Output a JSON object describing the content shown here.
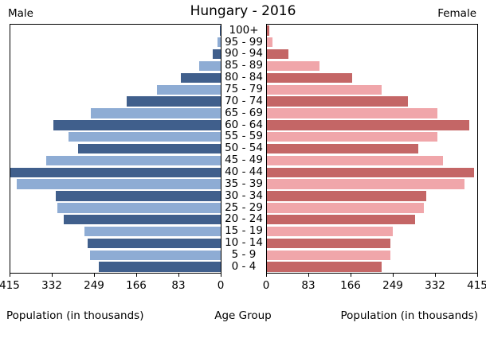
{
  "title": "Hungary - 2016",
  "left_header": "Male",
  "right_header": "Female",
  "axis": {
    "left_ticks": [
      "415",
      "332",
      "249",
      "166",
      "83",
      "0"
    ],
    "right_ticks": [
      "0",
      "83",
      "166",
      "249",
      "332",
      "415"
    ],
    "left_label": "Population (in thousands)",
    "center_label": "Age Group",
    "right_label": "Population (in thousands)"
  },
  "colors": {
    "male_dark": "#405F8C",
    "male_light": "#8EACD4",
    "female_dark": "#C46666",
    "female_light": "#F0A6AA"
  },
  "chart_data": {
    "type": "bar",
    "variant": "population-pyramid",
    "unit": "thousands",
    "xlim": [
      0,
      415
    ],
    "categories_top_to_bottom": [
      "100+",
      "95 - 99",
      "90 - 94",
      "85 - 89",
      "80 - 84",
      "75 - 79",
      "70 - 74",
      "65 - 69",
      "60 - 64",
      "55 - 59",
      "50 - 54",
      "45 - 49",
      "40 - 44",
      "35 - 39",
      "30 - 34",
      "25 - 29",
      "20 - 24",
      "15 - 19",
      "10 - 14",
      "5 - 9",
      "0 - 4"
    ],
    "series": [
      {
        "name": "Male",
        "values": [
          1,
          6,
          16,
          43,
          78,
          125,
          186,
          257,
          330,
          300,
          282,
          344,
          415,
          402,
          326,
          323,
          310,
          269,
          262,
          258,
          240
        ]
      },
      {
        "name": "Female",
        "values": [
          4,
          11,
          42,
          103,
          168,
          227,
          278,
          337,
          399,
          337,
          299,
          348,
          408,
          390,
          315,
          309,
          292,
          248,
          243,
          243,
          227
        ]
      }
    ],
    "legend": "none",
    "grid": false
  }
}
